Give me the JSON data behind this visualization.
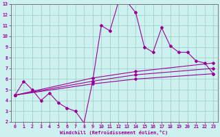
{
  "xlabel": "Windchill (Refroidissement éolien,°C)",
  "xlim": [
    -0.5,
    23.5
  ],
  "ylim": [
    2,
    13
  ],
  "yticks": [
    2,
    3,
    4,
    5,
    6,
    7,
    8,
    9,
    10,
    11,
    12,
    13
  ],
  "xticks": [
    0,
    1,
    2,
    3,
    4,
    5,
    6,
    7,
    8,
    9,
    10,
    11,
    12,
    13,
    14,
    15,
    16,
    17,
    18,
    19,
    20,
    21,
    22,
    23
  ],
  "bg_color": "#cdf0f0",
  "grid_color": "#99ccbb",
  "line_color": "#990099",
  "line1_x": [
    0,
    1,
    2,
    3,
    4,
    5,
    6,
    7,
    8,
    9,
    10,
    11,
    12,
    13,
    14,
    15,
    16,
    17,
    18,
    19,
    20,
    21,
    22,
    23
  ],
  "line1_y": [
    4.5,
    5.8,
    5.0,
    4.0,
    4.7,
    3.8,
    3.3,
    3.0,
    1.9,
    5.8,
    11.0,
    10.5,
    13.2,
    13.2,
    12.2,
    9.0,
    8.5,
    10.8,
    9.1,
    8.5,
    8.5,
    7.7,
    7.5,
    6.5
  ],
  "line2_x": [
    0,
    9,
    14,
    23
  ],
  "line2_y": [
    4.5,
    6.1,
    6.7,
    7.5
  ],
  "line3_x": [
    0,
    9,
    14,
    23
  ],
  "line3_y": [
    4.5,
    5.8,
    6.4,
    7.0
  ],
  "line4_x": [
    0,
    9,
    14,
    23
  ],
  "line4_y": [
    4.5,
    5.55,
    6.0,
    6.5
  ]
}
